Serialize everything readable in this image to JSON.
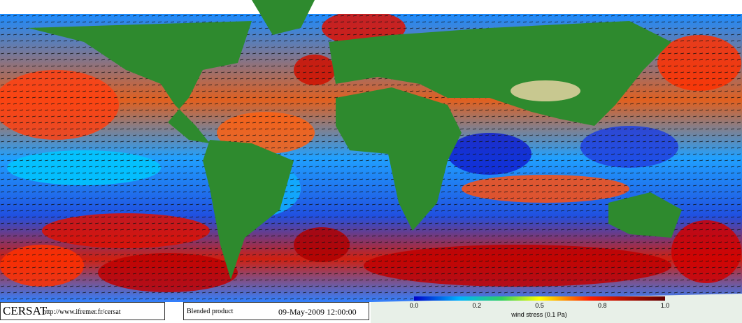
{
  "footer": {
    "brand": "CERSAT",
    "url": "http://www.ifremer.fr/cersat",
    "product": "Blended product",
    "date": "09-May-2009 12:00:00"
  },
  "colorbar": {
    "ticks": [
      "0.0",
      "0.2",
      "0.5",
      "0.8",
      "1.0"
    ],
    "label": "wind stress (0.1 Pa)"
  }
}
